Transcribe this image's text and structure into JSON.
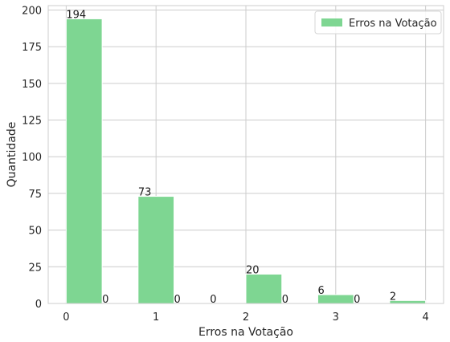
{
  "chart_data": {
    "type": "bar",
    "xlabel": "Erros na Votação",
    "ylabel": "Quantidade",
    "xlim": [
      -0.2,
      4.2
    ],
    "ylim": [
      0,
      203
    ],
    "xticks": [
      0,
      1,
      2,
      3,
      4
    ],
    "yticks": [
      0,
      25,
      50,
      75,
      100,
      125,
      150,
      175,
      200
    ],
    "grid": true,
    "legend": "top-right",
    "color": "#7ed692",
    "bin_width": 0.4,
    "bins": [
      {
        "start": 0.0,
        "value": 194,
        "label": "194"
      },
      {
        "start": 0.4,
        "value": 0,
        "label": "0"
      },
      {
        "start": 0.8,
        "value": 73,
        "label": "73"
      },
      {
        "start": 1.2,
        "value": 0,
        "label": "0"
      },
      {
        "start": 1.6,
        "value": 0,
        "label": "0"
      },
      {
        "start": 2.0,
        "value": 20,
        "label": "20"
      },
      {
        "start": 2.4,
        "value": 0,
        "label": "0"
      },
      {
        "start": 2.8,
        "value": 6,
        "label": "6"
      },
      {
        "start": 3.2,
        "value": 0,
        "label": "0"
      },
      {
        "start": 3.6,
        "value": 2,
        "label": "2"
      }
    ],
    "series": [
      {
        "name": "Erros na Votação"
      }
    ]
  }
}
